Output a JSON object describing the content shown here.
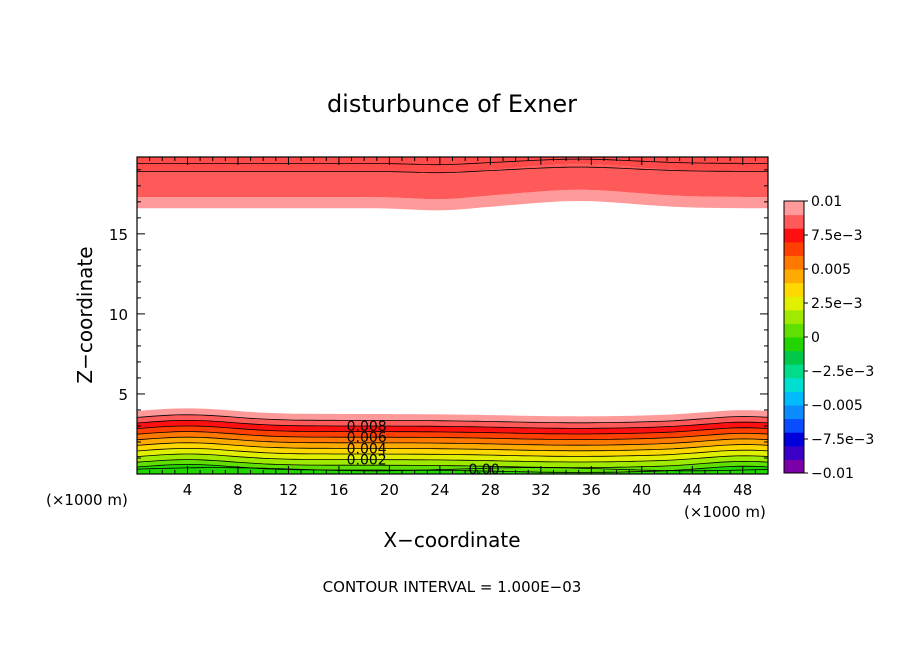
{
  "chart_data": {
    "type": "contour",
    "title": "disturbunce of Exner",
    "xlabel": "X−coordinate",
    "ylabel": "Z−coordinate",
    "x_unit_left": "(×1000 m)",
    "x_unit_right": "(×1000 m)",
    "xlim": [
      0,
      50
    ],
    "ylim": [
      0,
      19.8
    ],
    "x_ticks": [
      "4",
      "8",
      "12",
      "16",
      "20",
      "24",
      "28",
      "32",
      "36",
      "40",
      "44",
      "48"
    ],
    "x_tick_values": [
      4,
      8,
      12,
      16,
      20,
      24,
      28,
      32,
      36,
      40,
      44,
      48
    ],
    "y_ticks": [
      "5",
      "10",
      "15"
    ],
    "y_tick_values": [
      5,
      10,
      15
    ],
    "contour_labels": [
      {
        "text": "0.008",
        "x": 18.2,
        "z": 3.0
      },
      {
        "text": "0.006",
        "x": 18.2,
        "z": 2.3
      },
      {
        "text": "0.004",
        "x": 18.2,
        "z": 1.6
      },
      {
        "text": "0.002",
        "x": 18.2,
        "z": 0.9
      },
      {
        "text": "0.00",
        "x": 27.5,
        "z": 0.3
      }
    ],
    "colorbar": {
      "ticks": [
        "0.01",
        "7.5e−3",
        "0.005",
        "2.5e−3",
        "0",
        "−2.5e−3",
        "−0.005",
        "−7.5e−3",
        "−0.01"
      ],
      "tick_values": [
        0.01,
        0.0075,
        0.005,
        0.0025,
        0,
        -0.0025,
        -0.005,
        -0.0075,
        -0.01
      ],
      "range": [
        -0.01,
        0.01
      ],
      "colors": [
        "#7a00a8",
        "#3a00c8",
        "#0000dc",
        "#0a4cff",
        "#0a8cff",
        "#00bcff",
        "#00e0d0",
        "#00dc8a",
        "#00c848",
        "#22d400",
        "#60e000",
        "#a0ea00",
        "#e0f000",
        "#ffd800",
        "#ffaa00",
        "#ff7800",
        "#ff4000",
        "#ff1010",
        "#ff5a5a",
        "#ff9a9a"
      ]
    },
    "footer": "CONTOUR INTERVAL = 1.000E−03"
  }
}
